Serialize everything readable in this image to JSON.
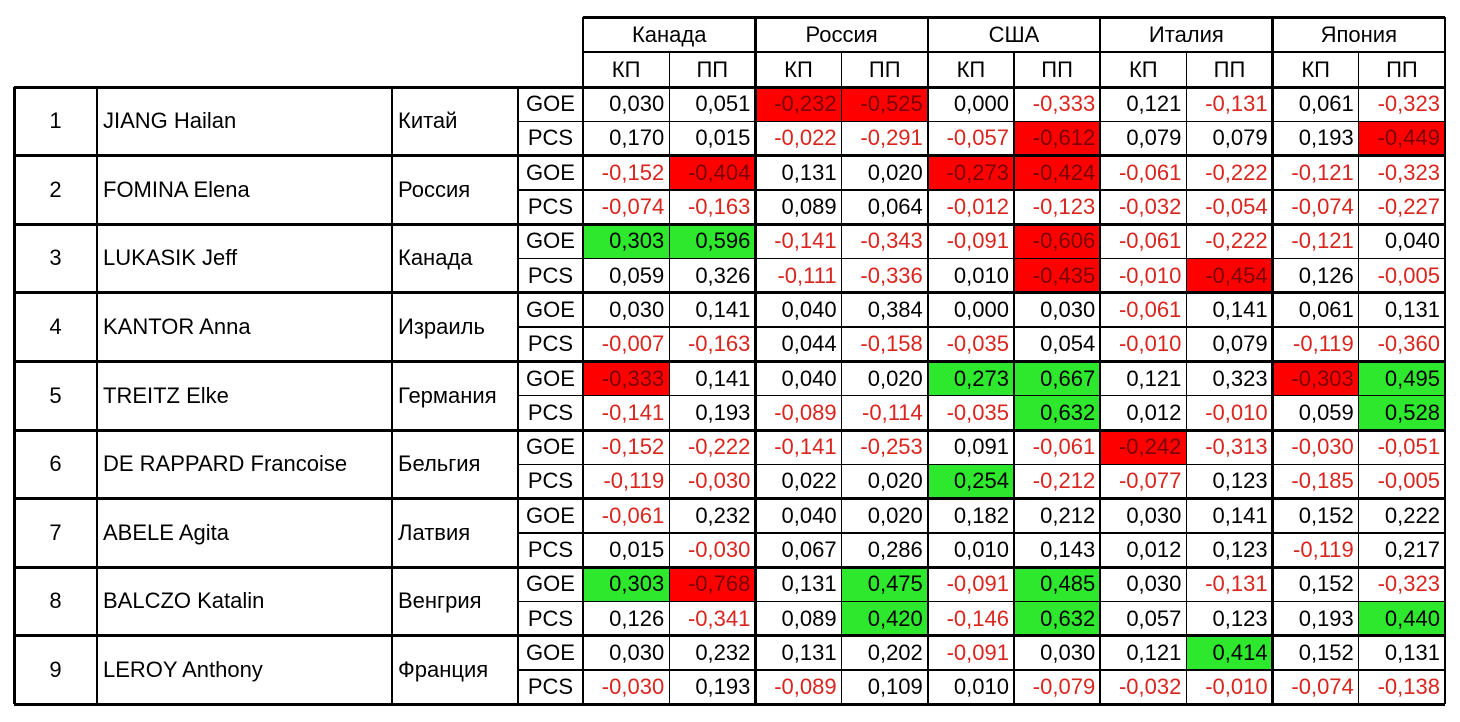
{
  "colors": {
    "highlight_red": "#ff0000",
    "highlight_green": "#2ee82e",
    "negative_text": "#d9251e",
    "positive_text": "#000000"
  },
  "header": {
    "countries": [
      "Канада",
      "Россия",
      "США",
      "Италия",
      "Япония"
    ],
    "sub": [
      "КП",
      "ПП"
    ]
  },
  "rows": [
    {
      "rank": "1",
      "name": "JIANG Hailan",
      "country": "Китай",
      "goe": [
        "0,030",
        "0,051",
        "-0,232",
        "-0,525",
        "0,000",
        "-0,333",
        "0,121",
        "-0,131",
        "0,061",
        "-0,323"
      ],
      "goe_hl": [
        "",
        "",
        "r",
        "r",
        "",
        "",
        "",
        "",
        "",
        ""
      ],
      "pcs": [
        "0,170",
        "0,015",
        "-0,022",
        "-0,291",
        "-0,057",
        "-0,612",
        "0,079",
        "0,079",
        "0,193",
        "-0,449"
      ],
      "pcs_hl": [
        "",
        "",
        "",
        "",
        "",
        "r",
        "",
        "",
        "",
        "r"
      ]
    },
    {
      "rank": "2",
      "name": "FOMINA Elena",
      "country": "Россия",
      "goe": [
        "-0,152",
        "-0,404",
        "0,131",
        "0,020",
        "-0,273",
        "-0,424",
        "-0,061",
        "-0,222",
        "-0,121",
        "-0,323"
      ],
      "goe_hl": [
        "",
        "r",
        "",
        "",
        "r",
        "r",
        "",
        "",
        "",
        ""
      ],
      "pcs": [
        "-0,074",
        "-0,163",
        "0,089",
        "0,064",
        "-0,012",
        "-0,123",
        "-0,032",
        "-0,054",
        "-0,074",
        "-0,227"
      ],
      "pcs_hl": [
        "",
        "",
        "",
        "",
        "",
        "",
        "",
        "",
        "",
        ""
      ]
    },
    {
      "rank": "3",
      "name": "LUKASIK Jeff",
      "country": "Канада",
      "goe": [
        "0,303",
        "0,596",
        "-0,141",
        "-0,343",
        "-0,091",
        "-0,606",
        "-0,061",
        "-0,222",
        "-0,121",
        "0,040"
      ],
      "goe_hl": [
        "g",
        "g",
        "",
        "",
        "",
        "r",
        "",
        "",
        "",
        ""
      ],
      "pcs": [
        "0,059",
        "0,326",
        "-0,111",
        "-0,336",
        "0,010",
        "-0,435",
        "-0,010",
        "-0,454",
        "0,126",
        "-0,005"
      ],
      "pcs_hl": [
        "",
        "",
        "",
        "",
        "",
        "r",
        "",
        "r",
        "",
        ""
      ]
    },
    {
      "rank": "4",
      "name": "KANTOR Anna",
      "country": "Израиль",
      "goe": [
        "0,030",
        "0,141",
        "0,040",
        "0,384",
        "0,000",
        "0,030",
        "-0,061",
        "0,141",
        "0,061",
        "0,131"
      ],
      "goe_hl": [
        "",
        "",
        "",
        "",
        "",
        "",
        "",
        "",
        "",
        ""
      ],
      "pcs": [
        "-0,007",
        "-0,163",
        "0,044",
        "-0,158",
        "-0,035",
        "0,054",
        "-0,010",
        "0,079",
        "-0,119",
        "-0,360"
      ],
      "pcs_hl": [
        "",
        "",
        "",
        "",
        "",
        "",
        "",
        "",
        "",
        ""
      ]
    },
    {
      "rank": "5",
      "name": "TREITZ Elke",
      "country": "Германия",
      "goe": [
        "-0,333",
        "0,141",
        "0,040",
        "0,020",
        "0,273",
        "0,667",
        "0,121",
        "0,323",
        "-0,303",
        "0,495"
      ],
      "goe_hl": [
        "r",
        "",
        "",
        "",
        "g",
        "g",
        "",
        "",
        "r",
        "g"
      ],
      "pcs": [
        "-0,141",
        "0,193",
        "-0,089",
        "-0,114",
        "-0,035",
        "0,632",
        "0,012",
        "-0,010",
        "0,059",
        "0,528"
      ],
      "pcs_hl": [
        "",
        "",
        "",
        "",
        "",
        "g",
        "",
        "",
        "",
        "g"
      ]
    },
    {
      "rank": "6",
      "name": "DE RAPPARD Francoise",
      "country": "Бельгия",
      "goe": [
        "-0,152",
        "-0,222",
        "-0,141",
        "-0,253",
        "0,091",
        "-0,061",
        "-0,242",
        "-0,313",
        "-0,030",
        "-0,051"
      ],
      "goe_hl": [
        "",
        "",
        "",
        "",
        "",
        "",
        "r",
        "",
        "",
        ""
      ],
      "pcs": [
        "-0,119",
        "-0,030",
        "0,022",
        "0,020",
        "0,254",
        "-0,212",
        "-0,077",
        "0,123",
        "-0,185",
        "-0,005"
      ],
      "pcs_hl": [
        "",
        "",
        "",
        "",
        "g",
        "",
        "",
        "",
        "",
        ""
      ]
    },
    {
      "rank": "7",
      "name": "ABELE Agita",
      "country": "Латвия",
      "goe": [
        "-0,061",
        "0,232",
        "0,040",
        "0,020",
        "0,182",
        "0,212",
        "0,030",
        "0,141",
        "0,152",
        "0,222"
      ],
      "goe_hl": [
        "",
        "",
        "",
        "",
        "",
        "",
        "",
        "",
        "",
        ""
      ],
      "pcs": [
        "0,015",
        "-0,030",
        "0,067",
        "0,286",
        "0,010",
        "0,143",
        "0,012",
        "0,123",
        "-0,119",
        "0,217"
      ],
      "pcs_hl": [
        "",
        "",
        "",
        "",
        "",
        "",
        "",
        "",
        "",
        ""
      ]
    },
    {
      "rank": "8",
      "name": "BALCZO Katalin",
      "country": "Венгрия",
      "goe": [
        "0,303",
        "-0,768",
        "0,131",
        "0,475",
        "-0,091",
        "0,485",
        "0,030",
        "-0,131",
        "0,152",
        "-0,323"
      ],
      "goe_hl": [
        "g",
        "r",
        "",
        "g",
        "",
        "g",
        "",
        "",
        "",
        ""
      ],
      "pcs": [
        "0,126",
        "-0,341",
        "0,089",
        "0,420",
        "-0,146",
        "0,632",
        "0,057",
        "0,123",
        "0,193",
        "0,440"
      ],
      "pcs_hl": [
        "",
        "",
        "",
        "g",
        "",
        "g",
        "",
        "",
        "",
        "g"
      ]
    },
    {
      "rank": "9",
      "name": "LEROY Anthony",
      "country": "Франция",
      "goe": [
        "0,030",
        "0,232",
        "0,131",
        "0,202",
        "-0,091",
        "0,030",
        "0,121",
        "0,414",
        "0,152",
        "0,131"
      ],
      "goe_hl": [
        "",
        "",
        "",
        "",
        "",
        "",
        "",
        "g",
        "",
        ""
      ],
      "pcs": [
        "-0,030",
        "0,193",
        "-0,089",
        "0,109",
        "0,010",
        "-0,079",
        "-0,032",
        "-0,010",
        "-0,074",
        "-0,138"
      ],
      "pcs_hl": [
        "",
        "",
        "",
        "",
        "",
        "",
        "",
        "",
        "",
        ""
      ]
    }
  ],
  "labels": {
    "goe": "GOE",
    "pcs": "PCS"
  }
}
